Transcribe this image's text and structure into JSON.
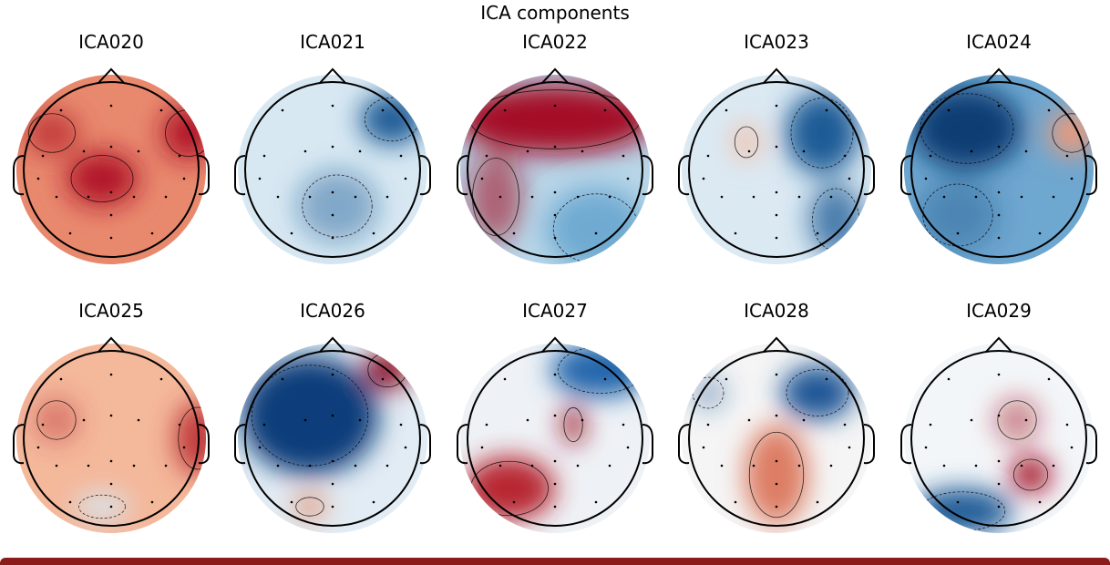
{
  "figure": {
    "title": "ICA components",
    "components": [
      {
        "name": "ICA020",
        "colors": {
          "bg": "#e8896e",
          "hot": [
            "#b2182b",
            "#c43c3c"
          ],
          "cold": []
        }
      },
      {
        "name": "ICA021",
        "colors": {
          "bg": "#d8e8f2",
          "hot": [],
          "cold": [
            "#1a5b96"
          ]
        }
      },
      {
        "name": "ICA022",
        "colors": {
          "bg": "#b8d6e8",
          "hot": [
            "#a50f26"
          ],
          "cold": [
            "#6faad2"
          ]
        }
      },
      {
        "name": "ICA023",
        "colors": {
          "bg": "#dbe9f3",
          "hot": [
            "#f3c0a7"
          ],
          "cold": [
            "#1d5c96"
          ]
        }
      },
      {
        "name": "ICA024",
        "colors": {
          "bg": "#6ea7d0",
          "hot": [
            "#ef9a78"
          ],
          "cold": [
            "#0f3d73"
          ]
        }
      },
      {
        "name": "ICA025",
        "colors": {
          "bg": "#f4b89b",
          "hot": [
            "#c0393b"
          ],
          "cold": [
            "#d7e6f1"
          ]
        }
      },
      {
        "name": "ICA026",
        "colors": {
          "bg": "#e2ecf4",
          "hot": [
            "#8e0b22",
            "#e08766"
          ],
          "cold": [
            "#0d3d7a"
          ]
        }
      },
      {
        "name": "ICA027",
        "colors": {
          "bg": "#eef2f6",
          "hot": [
            "#b72733",
            "#9c1325"
          ],
          "cold": [
            "#2166ac"
          ]
        }
      },
      {
        "name": "ICA028",
        "colors": {
          "bg": "#f5f5f5",
          "hot": [
            "#dd7d63"
          ],
          "cold": [
            "#1a5595"
          ]
        }
      },
      {
        "name": "ICA029",
        "colors": {
          "bg": "#f3f6f9",
          "hot": [
            "#a50f26"
          ],
          "cold": [
            "#1e5a96"
          ]
        }
      }
    ]
  }
}
